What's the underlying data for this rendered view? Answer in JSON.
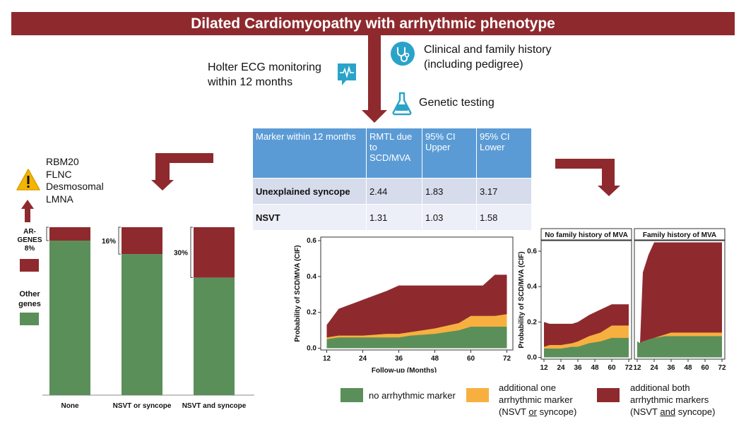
{
  "title": "Dilated Cardiomyopathy with arrhythmic phenotype",
  "clinical": {
    "line1": "Clinical and family history",
    "line2": "(including pedigree)"
  },
  "holter": {
    "line1": "Holter ECG monitoring",
    "line2": "within 12 months"
  },
  "genetic": "Genetic testing",
  "genes": [
    "RBM20",
    "FLNC",
    "Desmosomal",
    "LMNA"
  ],
  "table": {
    "headers": [
      "Marker within 12 months",
      "RMTL due to SCD/MVA",
      "95% CI Upper",
      "95% CI Lower"
    ],
    "rows": [
      [
        "Unexplained syncope",
        "2.44",
        "1.83",
        "3.17"
      ],
      [
        "NSVT",
        "1.31",
        "1.03",
        "1.58"
      ]
    ]
  },
  "left_legend": {
    "ar_genes": "AR-GENES",
    "ar_pct": "8%",
    "other": "Other",
    "genes": "genes"
  },
  "colors": {
    "red": "#8e2a2e",
    "green": "#5b8f5a",
    "orange": "#f7b040",
    "blue": "#5b9bd5"
  },
  "chart_data": [
    {
      "type": "bar",
      "stacked": true,
      "categories": [
        "None",
        "NSVT or syncope",
        "NSVT and syncope"
      ],
      "series": [
        {
          "name": "Other genes",
          "values": [
            92,
            84,
            70
          ]
        },
        {
          "name": "AR-GENES",
          "values": [
            8,
            16,
            30
          ]
        }
      ],
      "annotations": [
        "8%",
        "16%",
        "30%"
      ],
      "ylim": [
        0,
        100
      ]
    },
    {
      "type": "area",
      "stacked": true,
      "xlabel": "Follow-up (Months)",
      "ylabel": "Probability of SCD/MVA (CIF)",
      "xticks": [
        12,
        24,
        36,
        48,
        60,
        72
      ],
      "yticks": [
        "0.0",
        "0.2",
        "0.4",
        "0.6"
      ],
      "xlim": [
        10,
        74
      ],
      "ylim": [
        -0.01,
        0.62
      ],
      "x": [
        12,
        16,
        24,
        32,
        36,
        40,
        48,
        56,
        60,
        64,
        68,
        72
      ],
      "series": [
        {
          "name": "no arrhythmic marker",
          "values": [
            0.05,
            0.06,
            0.06,
            0.06,
            0.06,
            0.07,
            0.08,
            0.1,
            0.12,
            0.12,
            0.12,
            0.12
          ]
        },
        {
          "name": "additional one arrhythmic marker",
          "values": [
            0.06,
            0.07,
            0.07,
            0.08,
            0.08,
            0.09,
            0.11,
            0.14,
            0.18,
            0.18,
            0.18,
            0.19
          ]
        },
        {
          "name": "additional both arrhythmic markers",
          "values": [
            0.13,
            0.22,
            0.27,
            0.32,
            0.35,
            0.35,
            0.35,
            0.35,
            0.35,
            0.35,
            0.41,
            0.41
          ]
        }
      ]
    },
    {
      "type": "area",
      "stacked": true,
      "title": "No family history of MVA",
      "xlabel": "Follow-up (Months)",
      "ylabel": "Probability of SCD/MVA (CIF)",
      "xticks": [
        12,
        24,
        36,
        48,
        60,
        72
      ],
      "yticks": [
        "0.0",
        "0.2",
        "0.4",
        "0.6"
      ],
      "xlim": [
        10,
        74
      ],
      "ylim": [
        -0.01,
        0.66
      ],
      "x": [
        12,
        16,
        24,
        32,
        36,
        44,
        52,
        60,
        64,
        72
      ],
      "series": [
        {
          "name": "no arrhythmic marker",
          "values": [
            0.05,
            0.05,
            0.05,
            0.06,
            0.06,
            0.08,
            0.09,
            0.11,
            0.11,
            0.11
          ]
        },
        {
          "name": "additional one arrhythmic marker",
          "values": [
            0.06,
            0.07,
            0.07,
            0.08,
            0.09,
            0.12,
            0.14,
            0.18,
            0.18,
            0.18
          ]
        },
        {
          "name": "additional both arrhythmic markers",
          "values": [
            0.2,
            0.19,
            0.19,
            0.19,
            0.2,
            0.24,
            0.27,
            0.3,
            0.3,
            0.3
          ]
        }
      ]
    },
    {
      "type": "area",
      "stacked": true,
      "title": "Family history of MVA",
      "xticks": [
        12,
        24,
        36,
        48,
        60,
        72
      ],
      "xlim": [
        10,
        74
      ],
      "ylim": [
        -0.01,
        0.66
      ],
      "x": [
        12,
        14,
        16,
        20,
        24,
        32,
        36,
        48,
        60,
        72
      ],
      "series": [
        {
          "name": "no arrhythmic marker",
          "values": [
            0.09,
            0.08,
            0.09,
            0.1,
            0.11,
            0.12,
            0.12,
            0.12,
            0.12,
            0.12
          ]
        },
        {
          "name": "additional one arrhythmic marker",
          "values": [
            0.09,
            0.08,
            0.09,
            0.1,
            0.11,
            0.13,
            0.14,
            0.14,
            0.14,
            0.14
          ]
        },
        {
          "name": "additional both arrhythmic markers",
          "values": [
            0.09,
            0.08,
            0.48,
            0.58,
            0.65,
            0.65,
            0.65,
            0.65,
            0.65,
            0.65
          ]
        }
      ]
    }
  ],
  "legend": [
    {
      "key": "green",
      "lines": [
        "no arrhythmic marker"
      ]
    },
    {
      "key": "orange",
      "lines": [
        "additional one",
        "arrhythmic marker",
        "(NSVT or syncope)"
      ],
      "underline": "or"
    },
    {
      "key": "red",
      "lines": [
        "additional both",
        "arrhythmic markers",
        "(NSVT and syncope)"
      ],
      "underline": "and"
    }
  ]
}
